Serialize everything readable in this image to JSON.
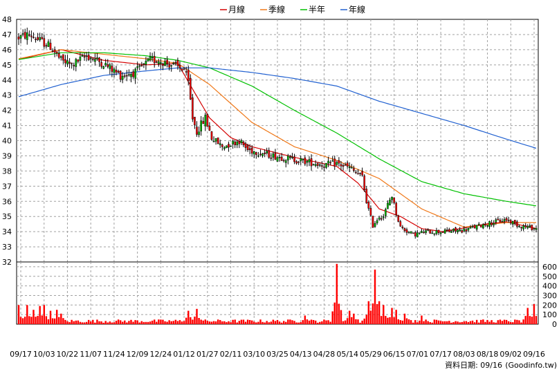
{
  "chart_data": {
    "type": "candlestick",
    "legend": [
      {
        "label": "月線",
        "color": "#d40000"
      },
      {
        "label": "季線",
        "color": "#f07818"
      },
      {
        "label": "半年",
        "color": "#00c000"
      },
      {
        "label": "年線",
        "color": "#2060d0"
      }
    ],
    "price_axis": {
      "ylim": [
        32,
        48
      ],
      "ticks": [
        "48",
        "47",
        "46",
        "45",
        "44",
        "43",
        "42",
        "41",
        "40",
        "39",
        "38",
        "37",
        "36",
        "35",
        "34",
        "33",
        "32"
      ]
    },
    "volume_axis": {
      "ylim": [
        0,
        650
      ],
      "ticks": [
        "600",
        "500",
        "400",
        "300",
        "200",
        "100",
        "0"
      ]
    },
    "x_tick_labels": [
      "09/17",
      "10/03",
      "10/22",
      "11/07",
      "11/24",
      "12/09",
      "12/24",
      "01/12",
      "01/27",
      "02/11",
      "03/10",
      "03/25",
      "04/13",
      "04/28",
      "05/14",
      "05/29",
      "06/15",
      "07/01",
      "07/17",
      "08/03",
      "08/18",
      "09/02",
      "09/16"
    ],
    "trading_days": 245,
    "anchors": [
      [
        0,
        46.8
      ],
      [
        5,
        47.0
      ],
      [
        10,
        46.6
      ],
      [
        15,
        46.2
      ],
      [
        20,
        45.3
      ],
      [
        25,
        45.0
      ],
      [
        32,
        45.6
      ],
      [
        40,
        45.1
      ],
      [
        48,
        44.3
      ],
      [
        55,
        44.5
      ],
      [
        62,
        45.3
      ],
      [
        66,
        45.3
      ],
      [
        72,
        45.0
      ],
      [
        78,
        44.7
      ],
      [
        80,
        43.8
      ],
      [
        82,
        41.5
      ],
      [
        84,
        40.6
      ],
      [
        88,
        41.5
      ],
      [
        91,
        40.2
      ],
      [
        96,
        39.6
      ],
      [
        104,
        40.0
      ],
      [
        108,
        39.4
      ],
      [
        114,
        39.2
      ],
      [
        120,
        39.0
      ],
      [
        128,
        38.8
      ],
      [
        136,
        38.6
      ],
      [
        144,
        38.4
      ],
      [
        150,
        38.5
      ],
      [
        156,
        38.2
      ],
      [
        162,
        37.6
      ],
      [
        164,
        36.0
      ],
      [
        167,
        34.4
      ],
      [
        170,
        35.0
      ],
      [
        172,
        35.0
      ],
      [
        174,
        35.8
      ],
      [
        176,
        36.4
      ],
      [
        178,
        35.2
      ],
      [
        180,
        34.3
      ],
      [
        186,
        33.8
      ],
      [
        192,
        34.0
      ],
      [
        200,
        34.0
      ],
      [
        210,
        34.1
      ],
      [
        220,
        34.5
      ],
      [
        230,
        34.8
      ],
      [
        236,
        34.4
      ],
      [
        240,
        34.3
      ],
      [
        244,
        34.2
      ]
    ],
    "ma_month": [
      [
        0,
        45.35
      ],
      [
        20,
        46.0
      ],
      [
        40,
        45.3
      ],
      [
        60,
        45.0
      ],
      [
        75,
        45.1
      ],
      [
        82,
        43.4
      ],
      [
        90,
        41.5
      ],
      [
        100,
        40.2
      ],
      [
        110,
        39.6
      ],
      [
        130,
        38.9
      ],
      [
        150,
        38.3
      ],
      [
        160,
        37.2
      ],
      [
        170,
        35.5
      ],
      [
        180,
        35.0
      ],
      [
        190,
        34.2
      ],
      [
        200,
        34.0
      ],
      [
        220,
        34.5
      ],
      [
        230,
        34.65
      ],
      [
        244,
        34.2
      ]
    ],
    "ma_quarter": [
      [
        0,
        45.4
      ],
      [
        20,
        46.0
      ],
      [
        40,
        45.7
      ],
      [
        60,
        45.4
      ],
      [
        75,
        45.1
      ],
      [
        90,
        43.7
      ],
      [
        110,
        41.2
      ],
      [
        130,
        39.6
      ],
      [
        150,
        38.7
      ],
      [
        170,
        37.5
      ],
      [
        190,
        35.5
      ],
      [
        210,
        34.3
      ],
      [
        230,
        34.6
      ],
      [
        244,
        34.6
      ]
    ],
    "ma_half": [
      [
        0,
        45.35
      ],
      [
        20,
        45.8
      ],
      [
        40,
        45.8
      ],
      [
        60,
        45.6
      ],
      [
        75,
        45.3
      ],
      [
        90,
        44.8
      ],
      [
        110,
        43.6
      ],
      [
        130,
        42.0
      ],
      [
        150,
        40.5
      ],
      [
        170,
        38.8
      ],
      [
        190,
        37.3
      ],
      [
        210,
        36.5
      ],
      [
        230,
        36.0
      ],
      [
        244,
        35.7
      ]
    ],
    "ma_year": [
      [
        0,
        42.9
      ],
      [
        20,
        43.7
      ],
      [
        40,
        44.3
      ],
      [
        60,
        44.6
      ],
      [
        75,
        44.8
      ],
      [
        90,
        44.8
      ],
      [
        110,
        44.5
      ],
      [
        130,
        44.1
      ],
      [
        150,
        43.6
      ],
      [
        170,
        42.6
      ],
      [
        190,
        41.8
      ],
      [
        210,
        41.0
      ],
      [
        230,
        40.1
      ],
      [
        244,
        39.5
      ]
    ],
    "volume_peaks": [
      [
        0,
        200
      ],
      [
        4,
        200
      ],
      [
        7,
        150
      ],
      [
        10,
        190
      ],
      [
        12,
        200
      ],
      [
        15,
        140
      ],
      [
        18,
        150
      ],
      [
        20,
        110
      ],
      [
        80,
        140
      ],
      [
        84,
        160
      ],
      [
        135,
        90
      ],
      [
        150,
        630
      ],
      [
        156,
        140
      ],
      [
        158,
        110
      ],
      [
        165,
        240
      ],
      [
        168,
        570
      ],
      [
        170,
        240
      ],
      [
        172,
        200
      ],
      [
        176,
        170
      ],
      [
        178,
        150
      ],
      [
        182,
        110
      ],
      [
        190,
        90
      ],
      [
        240,
        170
      ],
      [
        243,
        210
      ]
    ],
    "volume_colors": {
      "up": "#00c000",
      "down": "#ff0000"
    },
    "footer": {
      "date_label": "資料日期: 09/16",
      "source": "(Goodinfo.tw)"
    }
  },
  "colors": {
    "up_candle": "#00c000",
    "down_candle": "#ff0000",
    "wick": "#000000",
    "grid": "#a0a0a0",
    "volume_bar": "#ff0000"
  }
}
